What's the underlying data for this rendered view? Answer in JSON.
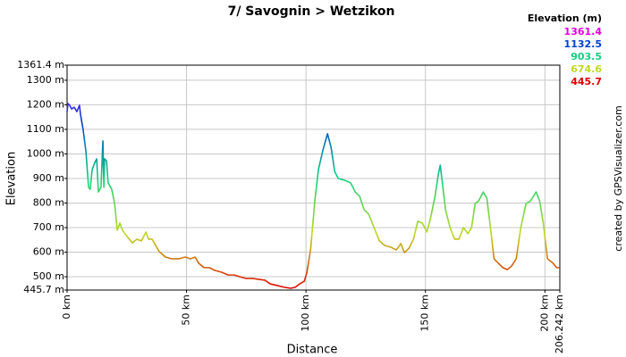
{
  "chart_data": {
    "type": "line",
    "title": "7/ Savognin > Wetzikon",
    "x_label": "Distance",
    "y_label": "Elevation",
    "credit": "created by GPSVisualizer.com",
    "color_scale_title": "Elevation (m)",
    "color_scale": [
      {
        "value": 1361.4,
        "color": "#e000e0"
      },
      {
        "value": 1132.5,
        "color": "#0040d0"
      },
      {
        "value": 903.5,
        "color": "#10d080"
      },
      {
        "value": 674.6,
        "color": "#c0d820"
      },
      {
        "value": 445.7,
        "color": "#e00000"
      }
    ],
    "xlim": [
      0,
      206.242
    ],
    "ylim": [
      445.7,
      1361.4
    ],
    "grid": true,
    "xticks": [
      {
        "value": 0,
        "label": "0 km"
      },
      {
        "value": 50,
        "label": "50 km"
      },
      {
        "value": 100,
        "label": "100 km"
      },
      {
        "value": 150,
        "label": "150 km"
      },
      {
        "value": 200,
        "label": "200 km"
      },
      {
        "value": 206.242,
        "label": "206.242 km"
      }
    ],
    "yticks": [
      {
        "value": 1361.4,
        "label": "1361.4 m"
      },
      {
        "value": 1300,
        "label": "1300 m"
      },
      {
        "value": 1200,
        "label": "1200 m"
      },
      {
        "value": 1100,
        "label": "1100 m"
      },
      {
        "value": 1000,
        "label": "1000 m"
      },
      {
        "value": 900,
        "label": "900 m"
      },
      {
        "value": 800,
        "label": "800 m"
      },
      {
        "value": 700,
        "label": "700 m"
      },
      {
        "value": 600,
        "label": "600 m"
      },
      {
        "value": 500,
        "label": "500 m"
      },
      {
        "value": 445.7,
        "label": "445.7 m"
      }
    ],
    "x": [
      0,
      0.4,
      1.1,
      1.9,
      3,
      4.1,
      5.2,
      5.6,
      6.7,
      7.9,
      9,
      9.7,
      10.5,
      11.6,
      12.4,
      13.1,
      14.2,
      15,
      15.4,
      15.7,
      16.5,
      17.2,
      18.7,
      19.9,
      21,
      22.1,
      23.2,
      25.1,
      27.3,
      29.2,
      31.1,
      33,
      34.1,
      35.6,
      37.1,
      38.6,
      41.2,
      43.8,
      46.8,
      49.4,
      51.7,
      53.6,
      55.1,
      57.3,
      59.6,
      61.8,
      64.8,
      67.4,
      70,
      72.3,
      74.9,
      77.5,
      80.5,
      82.8,
      85,
      88,
      91,
      93.6,
      95.5,
      97.4,
      99.3,
      100.4,
      101.9,
      103.7,
      105.2,
      107.1,
      109,
      110.5,
      112,
      113.5,
      116.1,
      118.7,
      120.6,
      122.5,
      124.3,
      126.2,
      128.5,
      130.7,
      133,
      135.6,
      137.8,
      139.7,
      141.2,
      143.1,
      145,
      146.8,
      148.7,
      150.6,
      152.1,
      154,
      155.4,
      156.2,
      157.3,
      158.4,
      160.3,
      162.2,
      164,
      165.9,
      167.8,
      169.3,
      170.8,
      172.3,
      174.2,
      175.7,
      177.2,
      178.7,
      180.5,
      182.4,
      184.3,
      186.1,
      188,
      189.9,
      192.1,
      194,
      196.3,
      197.8,
      199.3,
      201.1,
      203.4,
      204.9,
      206.2
    ],
    "values": [
      1172,
      1205,
      1198,
      1183,
      1190,
      1172,
      1198,
      1162,
      1100,
      1009,
      864,
      856,
      936,
      965,
      980,
      845,
      864,
      1053,
      864,
      980,
      972,
      882,
      856,
      798,
      689,
      718,
      689,
      664,
      638,
      653,
      646,
      682,
      653,
      653,
      627,
      602,
      580,
      573,
      573,
      580,
      573,
      580,
      555,
      537,
      537,
      526,
      518,
      507,
      507,
      500,
      493,
      493,
      489,
      486,
      471,
      464,
      457,
      453,
      457,
      471,
      482,
      518,
      609,
      809,
      936,
      1016,
      1082,
      1027,
      929,
      900,
      893,
      882,
      845,
      827,
      773,
      755,
      700,
      646,
      627,
      620,
      609,
      635,
      598,
      616,
      653,
      726,
      718,
      682,
      737,
      827,
      918,
      954,
      864,
      773,
      700,
      653,
      653,
      700,
      675,
      700,
      798,
      809,
      845,
      820,
      700,
      573,
      555,
      537,
      529,
      544,
      573,
      700,
      798,
      809,
      845,
      809,
      718,
      573,
      555,
      537,
      537
    ]
  }
}
